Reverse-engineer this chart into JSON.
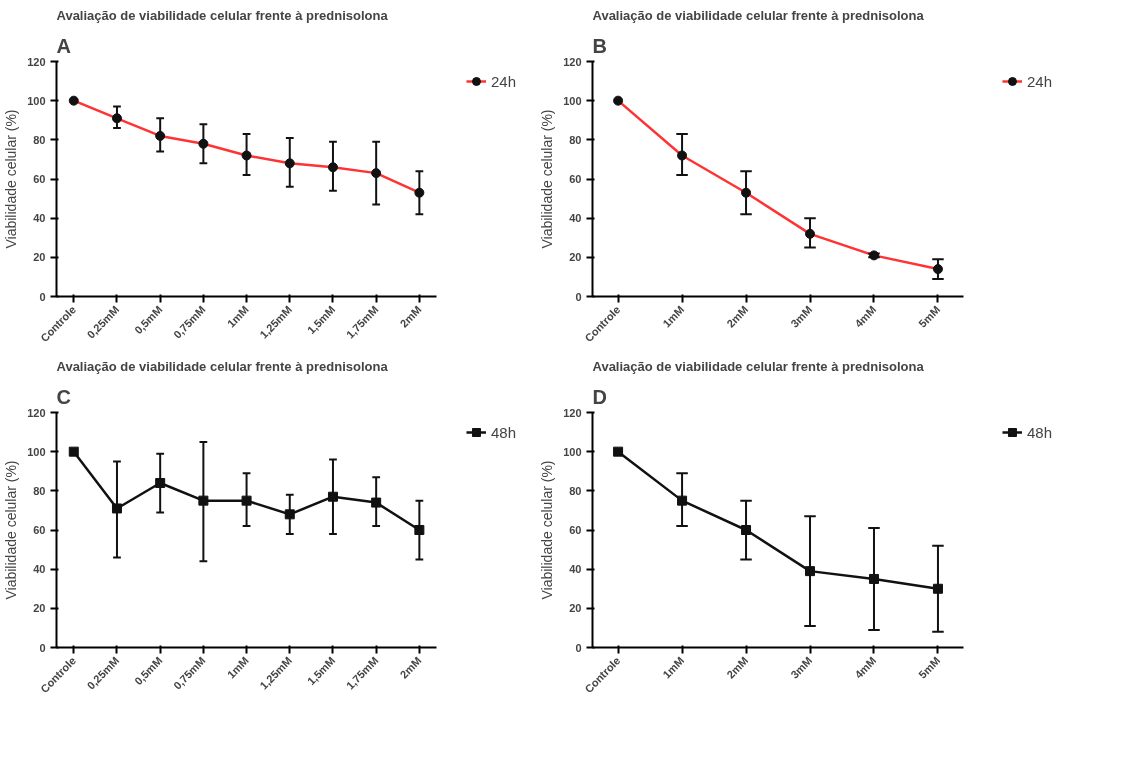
{
  "chart_data": [
    {
      "type": "line",
      "annotations": [
        "A"
      ],
      "title": "Avaliação de viabilidade celular frente à prednisolona",
      "ylabel": "Viabilidade celular (%)",
      "categories": [
        "Controle",
        "0,25mM",
        "0,5mM",
        "0,75mM",
        "1mM",
        "1,25mM",
        "1,5mM",
        "1,75mM",
        "2mM"
      ],
      "ylim": [
        0,
        120
      ],
      "yticks": [
        0,
        20,
        40,
        60,
        80,
        100,
        120
      ],
      "grid": false,
      "legend": "top right",
      "marker": "circle",
      "series": [
        {
          "name": "24h",
          "color": "#ff3333",
          "values": [
            100,
            91,
            82,
            78,
            72,
            68,
            66,
            63,
            53
          ],
          "errors": [
            null,
            [
              86,
              97
            ],
            [
              74,
              91
            ],
            [
              68,
              88
            ],
            [
              62,
              83
            ],
            [
              56,
              81
            ],
            [
              54,
              79
            ],
            [
              47,
              79
            ],
            [
              42,
              64
            ]
          ]
        }
      ]
    },
    {
      "type": "line",
      "annotations": [
        "B"
      ],
      "title": "Avaliação de viabilidade celular frente à prednisolona",
      "ylabel": "Viabilidade celular (%)",
      "categories": [
        "Controle",
        "1mM",
        "2mM",
        "3mM",
        "4mM",
        "5mM"
      ],
      "ylim": [
        0,
        120
      ],
      "yticks": [
        0,
        20,
        40,
        60,
        80,
        100,
        120
      ],
      "grid": false,
      "legend": "top right",
      "marker": "circle",
      "series": [
        {
          "name": "24h",
          "color": "#ff3333",
          "values": [
            100,
            72,
            53,
            32,
            21,
            14
          ],
          "errors": [
            null,
            [
              62,
              83
            ],
            [
              42,
              64
            ],
            [
              25,
              40
            ],
            [
              20,
              22
            ],
            [
              9,
              19
            ]
          ]
        }
      ]
    },
    {
      "type": "line",
      "annotations": [
        "C"
      ],
      "title": "Avaliação de viabilidade celular frente à prednisolona",
      "ylabel": "Viabilidade celular (%)",
      "categories": [
        "Controle",
        "0,25mM",
        "0,5mM",
        "0,75mM",
        "1mM",
        "1,25mM",
        "1,5mM",
        "1,75mM",
        "2mM"
      ],
      "ylim": [
        0,
        120
      ],
      "yticks": [
        0,
        20,
        40,
        60,
        80,
        100,
        120
      ],
      "grid": false,
      "legend": "top right",
      "marker": "square",
      "series": [
        {
          "name": "48h",
          "color": "#111111",
          "values": [
            100,
            71,
            84,
            75,
            75,
            68,
            77,
            74,
            60
          ],
          "errors": [
            null,
            [
              46,
              95
            ],
            [
              69,
              99
            ],
            [
              44,
              105
            ],
            [
              62,
              89
            ],
            [
              58,
              78
            ],
            [
              58,
              96
            ],
            [
              62,
              87
            ],
            [
              45,
              75
            ]
          ]
        }
      ]
    },
    {
      "type": "line",
      "annotations": [
        "D"
      ],
      "title": "Avaliação de viabilidade celular frente à prednisolona",
      "ylabel": "Viabilidade celular (%)",
      "categories": [
        "Controle",
        "1mM",
        "2mM",
        "3mM",
        "4mM",
        "5mM"
      ],
      "ylim": [
        0,
        120
      ],
      "yticks": [
        0,
        20,
        40,
        60,
        80,
        100,
        120
      ],
      "grid": false,
      "legend": "top right",
      "marker": "square",
      "series": [
        {
          "name": "48h",
          "color": "#111111",
          "values": [
            100,
            75,
            60,
            39,
            35,
            30
          ],
          "errors": [
            null,
            [
              62,
              89
            ],
            [
              45,
              75
            ],
            [
              11,
              67
            ],
            [
              9,
              61
            ],
            [
              8,
              52
            ]
          ]
        }
      ]
    }
  ]
}
